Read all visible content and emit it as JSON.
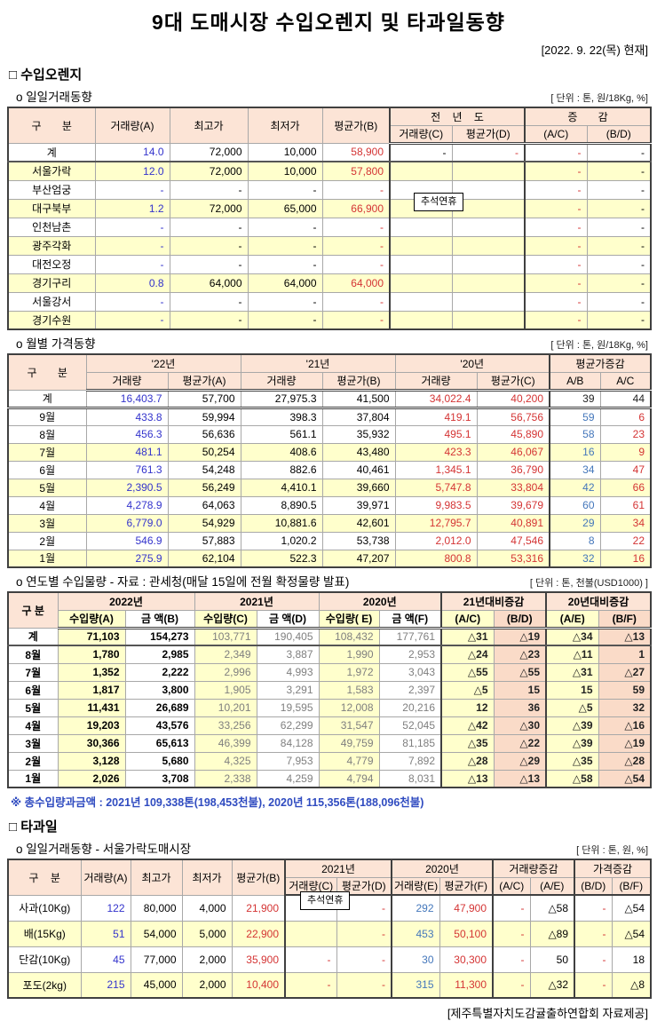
{
  "page": {
    "title": "9대 도매시장 수입오렌지 및 타과일동향",
    "as_of_date": "[2022. 9. 22(목) 현재]",
    "source_footer": "[제주특별자치도감귤출하연합회 자료제공]"
  },
  "colors": {
    "header_bg": "#FCE4D6",
    "zebra_yellow": "#FFFFCC",
    "change_pink": "#FADBC8",
    "value_blue": "#3333CC",
    "value_steel_blue": "#4477BB",
    "value_red": "#D43434",
    "muted_gray": "#7F7F7F",
    "footnote_blue": "#2F4BC0"
  },
  "orange_section": {
    "heading": "□ 수입오렌지",
    "daily": {
      "subtitle": "o 일일거래동향",
      "unit": "[ 단위 : 톤, 원/18Kg, %]",
      "holiday_note": "추석연휴",
      "header": {
        "gubun": "구 분",
        "vol_a": "거래량(A)",
        "high": "최고가",
        "low": "최저가",
        "avg_b": "평균가(B)",
        "prev_year": "전 년 도",
        "vol_c": "거래량(C)",
        "avg_d": "평균가(D)",
        "change": "증 감",
        "ac": "(A/C)",
        "bd": "(B/D)"
      },
      "rows": [
        [
          "계",
          "14.0",
          "72,000",
          "10,000",
          "58,900",
          "-",
          "-",
          "-",
          "-"
        ],
        [
          "서울가락",
          "12.0",
          "72,000",
          "10,000",
          "57,800",
          "",
          "",
          "-",
          "-"
        ],
        [
          "부산엄궁",
          "-",
          "-",
          "-",
          "-",
          "",
          "",
          "-",
          "-"
        ],
        [
          "대구북부",
          "1.2",
          "72,000",
          "65,000",
          "66,900",
          "",
          "",
          "-",
          "-"
        ],
        [
          "인천남촌",
          "-",
          "-",
          "-",
          "-",
          "",
          "",
          "-",
          "-"
        ],
        [
          "광주각화",
          "-",
          "-",
          "-",
          "-",
          "",
          "",
          "-",
          "-"
        ],
        [
          "대전오정",
          "-",
          "-",
          "-",
          "-",
          "",
          "",
          "-",
          "-"
        ],
        [
          "경기구리",
          "0.8",
          "64,000",
          "64,000",
          "64,000",
          "",
          "",
          "-",
          "-"
        ],
        [
          "서울강서",
          "-",
          "-",
          "-",
          "-",
          "",
          "",
          "-",
          "-"
        ],
        [
          "경기수원",
          "-",
          "-",
          "-",
          "-",
          "",
          "",
          "-",
          "-"
        ]
      ]
    },
    "monthly": {
      "subtitle": "o 월별 가격동향",
      "unit": "[ 단위 : 톤, 원/18Kg, %]",
      "header": {
        "gubun": "구 분",
        "y22": "'22년",
        "y21": "'21년",
        "y20": "'20년",
        "chg": "평균가증감",
        "vol": "거래량",
        "avg_a": "평균가(A)",
        "avg_b": "평균가(B)",
        "avg_c": "평균가(C)",
        "ab": "A/B",
        "ac": "A/C"
      },
      "rows": [
        [
          "계",
          "16,403.7",
          "57,700",
          "27,975.3",
          "41,500",
          "34,022.4",
          "40,200",
          "39",
          "44"
        ],
        [
          "9월",
          "433.8",
          "59,994",
          "398.3",
          "37,804",
          "419.1",
          "56,756",
          "59",
          "6"
        ],
        [
          "8월",
          "456.3",
          "56,636",
          "561.1",
          "35,932",
          "495.1",
          "45,890",
          "58",
          "23"
        ],
        [
          "7월",
          "481.1",
          "50,254",
          "408.6",
          "43,480",
          "423.3",
          "46,067",
          "16",
          "9"
        ],
        [
          "6월",
          "761.3",
          "54,248",
          "882.6",
          "40,461",
          "1,345.1",
          "36,790",
          "34",
          "47"
        ],
        [
          "5월",
          "2,390.5",
          "56,249",
          "4,410.1",
          "39,660",
          "5,747.8",
          "33,804",
          "42",
          "66"
        ],
        [
          "4월",
          "4,278.9",
          "64,063",
          "8,890.5",
          "39,971",
          "9,983.5",
          "39,679",
          "60",
          "61"
        ],
        [
          "3월",
          "6,779.0",
          "54,929",
          "10,881.6",
          "42,601",
          "12,795.7",
          "40,891",
          "29",
          "34"
        ],
        [
          "2월",
          "546.9",
          "57,883",
          "1,020.2",
          "53,738",
          "2,012.0",
          "47,546",
          "8",
          "22"
        ],
        [
          "1월",
          "275.9",
          "62,104",
          "522.3",
          "47,207",
          "800.8",
          "53,316",
          "32",
          "16"
        ]
      ]
    },
    "yearly": {
      "subtitle": "o 연도별 수입물량 - 자료 : 관세청(매달 15일에 전월 확정물량 발표)",
      "unit": "[ 단위 : 톤, 천불(USD1000) ]",
      "header": {
        "gubun": "구 분",
        "y2022": "2022년",
        "y2021": "2021년",
        "y2020": "2020년",
        "chg21": "21년대비증감",
        "chg20": "20년대비증감",
        "vol_a": "수입량(A)",
        "amt_b": "금 액(B)",
        "vol_c": "수입량(C)",
        "amt_d": "금 액(D)",
        "vol_e": "수입량( E)",
        "amt_f": "금 액(F)",
        "ac": "(A/C)",
        "bd": "(B/D)",
        "ae": "(A/E)",
        "bf": "(B/F)"
      },
      "rows": [
        [
          "계",
          "71,103",
          "154,273",
          "103,771",
          "190,405",
          "108,432",
          "177,761",
          "△31",
          "△19",
          "△34",
          "△13"
        ],
        [
          "8월",
          "1,780",
          "2,985",
          "2,349",
          "3,887",
          "1,990",
          "2,953",
          "△24",
          "△23",
          "△11",
          "1"
        ],
        [
          "7월",
          "1,352",
          "2,222",
          "2,996",
          "4,993",
          "1,972",
          "3,043",
          "△55",
          "△55",
          "△31",
          "△27"
        ],
        [
          "6월",
          "1,817",
          "3,800",
          "1,905",
          "3,291",
          "1,583",
          "2,397",
          "△5",
          "15",
          "15",
          "59"
        ],
        [
          "5월",
          "11,431",
          "26,689",
          "10,201",
          "19,595",
          "12,008",
          "20,216",
          "12",
          "36",
          "△5",
          "32"
        ],
        [
          "4월",
          "19,203",
          "43,576",
          "33,256",
          "62,299",
          "31,547",
          "52,045",
          "△42",
          "△30",
          "△39",
          "△16"
        ],
        [
          "3월",
          "30,366",
          "65,613",
          "46,399",
          "84,128",
          "49,759",
          "81,185",
          "△35",
          "△22",
          "△39",
          "△19"
        ],
        [
          "2월",
          "3,128",
          "5,680",
          "4,325",
          "7,953",
          "4,779",
          "7,892",
          "△28",
          "△29",
          "△35",
          "△28"
        ],
        [
          "1월",
          "2,026",
          "3,708",
          "2,338",
          "4,259",
          "4,794",
          "8,031",
          "△13",
          "△13",
          "△58",
          "△54"
        ]
      ],
      "footnote": "※ 총수입량과금액 : 2021년 109,338톤(198,453천불),  2020년 115,356톤(188,096천불)"
    }
  },
  "fruit_section": {
    "heading": "□ 타과일",
    "daily": {
      "subtitle": "o 일일거래동향 - 서울가락도매시장",
      "unit": "[ 단위 : 톤, 원, %]",
      "holiday_note": "추석연휴",
      "header": {
        "gubun": "구 분",
        "vol_a": "거래량(A)",
        "high": "최고가",
        "low": "최저가",
        "avg_b": "평균가(B)",
        "y2021": "2021년",
        "y2020": "2020년",
        "vol_chg": "거래량증감",
        "price_chg": "가격증감",
        "vol_c": "거래량(C)",
        "avg_d": "평균가(D)",
        "vol_e": "거래량(E)",
        "avg_f": "평균가(F)",
        "ac": "(A/C)",
        "ae": "(A/E)",
        "bd": "(B/D)",
        "bf": "(B/F)"
      },
      "rows": [
        [
          "사과(10Kg)",
          "122",
          "80,000",
          "4,000",
          "21,900",
          "-",
          "-",
          "292",
          "47,900",
          "-",
          "△58",
          "-",
          "△54"
        ],
        [
          "배(15Kg)",
          "51",
          "54,000",
          "5,000",
          "22,900",
          "",
          "-",
          "453",
          "50,100",
          "-",
          "△89",
          "-",
          "△54"
        ],
        [
          "단감(10Kg)",
          "45",
          "77,000",
          "2,000",
          "35,900",
          "-",
          "-",
          "30",
          "30,300",
          "-",
          "50",
          "-",
          "18"
        ],
        [
          "포도(2kg)",
          "215",
          "45,000",
          "2,000",
          "10,400",
          "-",
          "-",
          "315",
          "11,300",
          "-",
          "△32",
          "-",
          "△8"
        ]
      ]
    }
  }
}
